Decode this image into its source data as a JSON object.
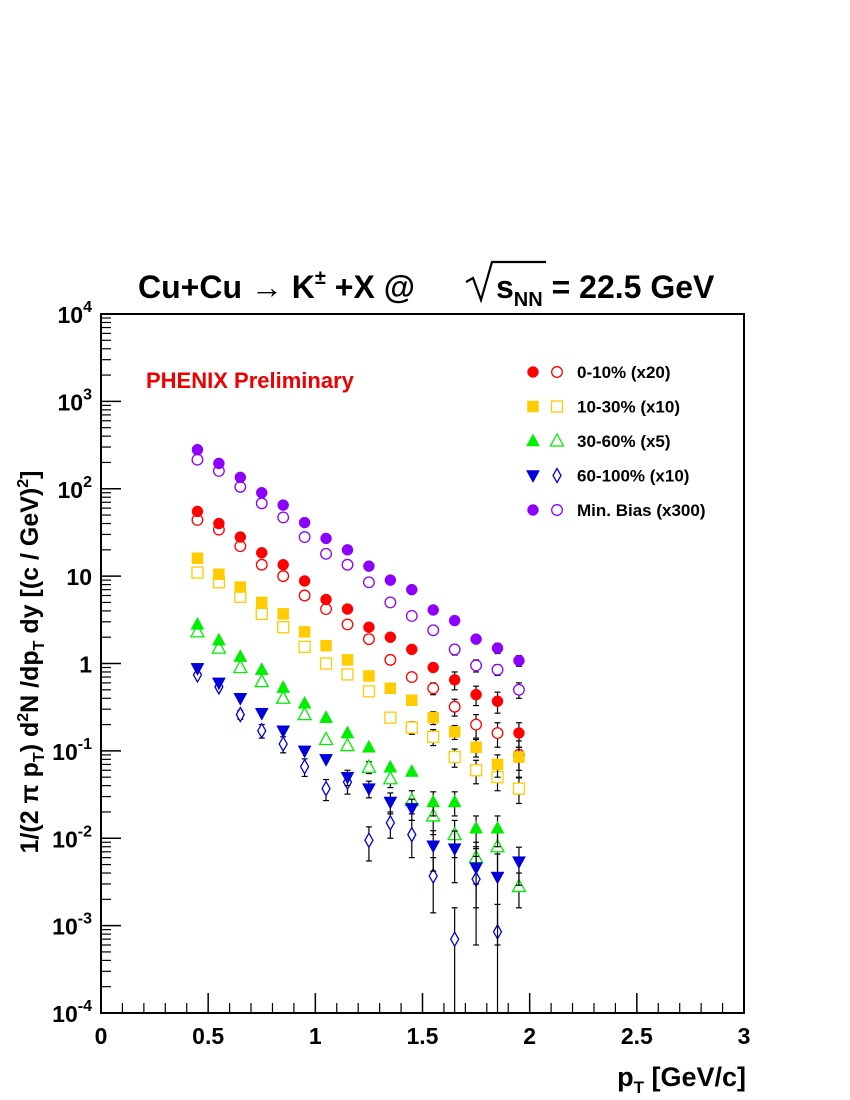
{
  "chart_data": {
    "type": "scatter",
    "title": {
      "main": "Cu+Cu → K",
      "sup": "±",
      "rest": " +X @",
      "sqrt_s": "s",
      "sqrt_sub": "NN",
      "energy": " = 22.5 GeV"
    },
    "xlabel": {
      "main": "p",
      "sub": "T",
      "rest": " [GeV/c]"
    },
    "ylabel": "1/(2 π p_T) d²N /dp_T dy [(c / GeV)²]",
    "annotation": "PHENIX Preliminary",
    "xlim": [
      0,
      3
    ],
    "ylim": [
      0.0001,
      10000
    ],
    "yscale": "log",
    "x_ticks": [
      {
        "value": 0,
        "label": "0"
      },
      {
        "value": 0.5,
        "label": "0.5"
      },
      {
        "value": 1,
        "label": "1"
      },
      {
        "value": 1.5,
        "label": "1.5"
      },
      {
        "value": 2,
        "label": "2"
      },
      {
        "value": 2.5,
        "label": "2.5"
      },
      {
        "value": 3,
        "label": "3"
      }
    ],
    "y_ticks": [
      {
        "value": 0.0001,
        "base": "10",
        "exp": "-4"
      },
      {
        "value": 0.001,
        "base": "10",
        "exp": "-3"
      },
      {
        "value": 0.01,
        "base": "10",
        "exp": "-2"
      },
      {
        "value": 0.1,
        "base": "10",
        "exp": "-1"
      },
      {
        "value": 1,
        "base": "1",
        "exp": ""
      },
      {
        "value": 10,
        "base": "10",
        "exp": ""
      },
      {
        "value": 100,
        "base": "10",
        "exp": "2"
      },
      {
        "value": 1000,
        "base": "10",
        "exp": "3"
      },
      {
        "value": 10000,
        "base": "10",
        "exp": "4"
      }
    ],
    "legend_position": "top-right",
    "grid": false,
    "series": [
      {
        "name": "0-10% (x20)",
        "color": "#ff0000",
        "filled_marker": "circle",
        "open_marker": "circle",
        "filled": {
          "x": [
            0.45,
            0.55,
            0.65,
            0.75,
            0.85,
            0.95,
            1.05,
            1.15,
            1.25,
            1.35,
            1.45,
            1.55,
            1.65,
            1.75,
            1.85,
            1.95
          ],
          "y": [
            55,
            40,
            28,
            18.5,
            13.5,
            8.8,
            5.4,
            4.2,
            2.6,
            2.0,
            1.45,
            0.9,
            0.65,
            0.44,
            0.37,
            0.16
          ],
          "err": [
            0,
            0,
            0,
            0,
            0,
            0,
            0,
            0,
            0,
            0,
            0,
            0,
            0.15,
            0.11,
            0.1,
            0.05
          ]
        },
        "open": {
          "x": [
            0.45,
            0.55,
            0.65,
            0.75,
            0.85,
            0.95,
            1.05,
            1.15,
            1.25,
            1.35,
            1.45,
            1.55,
            1.65,
            1.75,
            1.85,
            1.95
          ],
          "y": [
            44,
            34,
            22,
            13.5,
            10,
            6,
            4.2,
            2.8,
            1.9,
            1.1,
            0.7,
            0.52,
            0.32,
            0.2,
            0.16,
            0.09
          ],
          "err": [
            0,
            0,
            0,
            0,
            0,
            0,
            0,
            0,
            0,
            0,
            0,
            0.08,
            0.07,
            0.06,
            0.05,
            0.04
          ]
        }
      },
      {
        "name": "10-30% (x10)",
        "color": "#ffcc00",
        "filled_marker": "square",
        "open_marker": "square",
        "filled": {
          "x": [
            0.45,
            0.55,
            0.65,
            0.75,
            0.85,
            0.95,
            1.05,
            1.15,
            1.25,
            1.35,
            1.45,
            1.55,
            1.65,
            1.75,
            1.85,
            1.95
          ],
          "y": [
            16,
            10.5,
            7.5,
            5,
            3.7,
            2.3,
            1.6,
            1.1,
            0.72,
            0.52,
            0.38,
            0.24,
            0.165,
            0.11,
            0.07,
            0.085
          ],
          "err": [
            0,
            0,
            0,
            0,
            0,
            0,
            0,
            0,
            0,
            0,
            0,
            0.04,
            0.03,
            0.025,
            0.02,
            0.025
          ]
        },
        "open": {
          "x": [
            0.45,
            0.55,
            0.65,
            0.75,
            0.85,
            0.95,
            1.05,
            1.15,
            1.25,
            1.35,
            1.45,
            1.55,
            1.65,
            1.75,
            1.85,
            1.95
          ],
          "y": [
            11,
            8.5,
            5.8,
            3.7,
            2.6,
            1.55,
            1.0,
            0.75,
            0.48,
            0.24,
            0.185,
            0.145,
            0.085,
            0.06,
            0.05,
            0.037
          ],
          "err": [
            0,
            0,
            0,
            0,
            0,
            0,
            0,
            0,
            0,
            0,
            0.03,
            0.03,
            0.02,
            0.018,
            0.015,
            0.012
          ]
        }
      },
      {
        "name": "30-60% (x5)",
        "color": "#00ee00",
        "filled_marker": "triangle-up",
        "open_marker": "triangle-up",
        "filled": {
          "x": [
            0.45,
            0.55,
            0.65,
            0.75,
            0.85,
            0.95,
            1.05,
            1.15,
            1.25,
            1.35,
            1.45,
            1.55,
            1.65,
            1.75,
            1.85
          ],
          "y": [
            2.8,
            1.85,
            1.2,
            0.85,
            0.53,
            0.35,
            0.24,
            0.16,
            0.11,
            0.065,
            0.058,
            0.026,
            0.026,
            0.013,
            0.013
          ],
          "err": [
            0,
            0,
            0,
            0,
            0,
            0,
            0,
            0,
            0,
            0,
            0,
            0.008,
            0.008,
            0.005,
            0.005
          ]
        },
        "open": {
          "x": [
            0.45,
            0.55,
            0.65,
            0.75,
            0.85,
            0.95,
            1.05,
            1.15,
            1.25,
            1.35,
            1.45,
            1.55,
            1.65,
            1.75,
            1.85,
            1.95
          ],
          "y": [
            2.3,
            1.5,
            0.9,
            0.62,
            0.4,
            0.26,
            0.135,
            0.115,
            0.065,
            0.048,
            0.027,
            0.018,
            0.011,
            0.006,
            0.008,
            0.0028
          ],
          "err": [
            0,
            0,
            0,
            0,
            0,
            0,
            0,
            0,
            0.01,
            0.01,
            0.008,
            0.007,
            0.005,
            0.003,
            0.004,
            0.0012
          ]
        }
      },
      {
        "name": "60-100% (x10)",
        "color": "#0000dd",
        "filled_marker": "triangle-down",
        "open_marker": "diamond",
        "filled": {
          "x": [
            0.45,
            0.55,
            0.65,
            0.75,
            0.85,
            0.95,
            1.05,
            1.15,
            1.25,
            1.35,
            1.45,
            1.55,
            1.65,
            1.75,
            1.85,
            1.95
          ],
          "y": [
            0.88,
            0.6,
            0.4,
            0.27,
            0.17,
            0.1,
            0.08,
            0.05,
            0.037,
            0.026,
            0.022,
            0.0082,
            0.0076,
            0.0046,
            0.0036,
            0.0054
          ],
          "err": [
            0,
            0,
            0,
            0,
            0,
            0,
            0,
            0.01,
            0.008,
            0.007,
            0.006,
            0.004,
            0.0045,
            0.003,
            0.003,
            0.0025
          ]
        },
        "open": {
          "x": [
            0.45,
            0.55,
            0.65,
            0.75,
            0.85,
            0.95,
            1.05,
            1.15,
            1.25,
            1.35,
            1.45,
            1.55,
            1.65,
            1.75,
            1.85
          ],
          "y": [
            0.74,
            0.54,
            0.26,
            0.17,
            0.12,
            0.066,
            0.037,
            0.044,
            0.0095,
            0.015,
            0.011,
            0.0037,
            0.0007,
            0.0034,
            0.00085
          ],
          "err": [
            0,
            0,
            0.03,
            0.03,
            0.025,
            0.015,
            0.01,
            0.012,
            0.004,
            0.005,
            0.005,
            0.0023,
            0.0009,
            0.0028,
            0.0009
          ]
        }
      },
      {
        "name": "Min. Bias (x300)",
        "color": "#8b00ff",
        "filled_marker": "circle",
        "open_marker": "circle",
        "filled": {
          "x": [
            0.45,
            0.55,
            0.65,
            0.75,
            0.85,
            0.95,
            1.05,
            1.15,
            1.25,
            1.35,
            1.45,
            1.55,
            1.65,
            1.75,
            1.85,
            1.95
          ],
          "y": [
            280,
            195,
            135,
            90,
            65,
            41,
            27,
            20,
            13,
            9,
            7,
            4.1,
            3.1,
            1.9,
            1.5,
            1.08
          ],
          "err": [
            0,
            0,
            0,
            0,
            0,
            0,
            0,
            0,
            0,
            0,
            0,
            0,
            0,
            0,
            0.2,
            0.15
          ]
        },
        "open": {
          "x": [
            0.45,
            0.55,
            0.65,
            0.75,
            0.85,
            0.95,
            1.05,
            1.15,
            1.25,
            1.35,
            1.45,
            1.55,
            1.65,
            1.75,
            1.85,
            1.95
          ],
          "y": [
            215,
            160,
            105,
            68,
            47,
            28,
            18,
            13.5,
            8.5,
            5,
            3.5,
            2.4,
            1.45,
            0.95,
            0.85,
            0.5
          ],
          "err": [
            0,
            0,
            0,
            0,
            0,
            0,
            0,
            0,
            0,
            0,
            0,
            0,
            0.2,
            0.15,
            0.12,
            0.1
          ]
        }
      }
    ]
  }
}
